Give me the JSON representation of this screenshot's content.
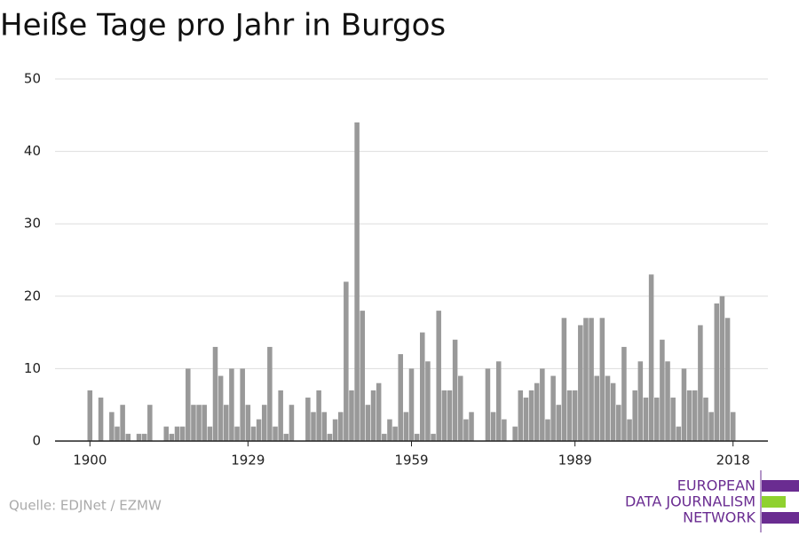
{
  "chart_data": {
    "type": "bar",
    "title": "Heiße Tage pro Jahr in Burgos",
    "x": [
      1900,
      1901,
      1902,
      1903,
      1904,
      1905,
      1906,
      1907,
      1908,
      1909,
      1910,
      1911,
      1912,
      1913,
      1914,
      1915,
      1916,
      1917,
      1918,
      1919,
      1920,
      1921,
      1922,
      1923,
      1924,
      1925,
      1926,
      1927,
      1928,
      1929,
      1930,
      1931,
      1932,
      1933,
      1934,
      1935,
      1936,
      1937,
      1938,
      1939,
      1940,
      1941,
      1942,
      1943,
      1944,
      1945,
      1946,
      1947,
      1948,
      1949,
      1950,
      1951,
      1952,
      1953,
      1954,
      1955,
      1956,
      1957,
      1958,
      1959,
      1960,
      1961,
      1962,
      1963,
      1964,
      1965,
      1966,
      1967,
      1968,
      1969,
      1970,
      1971,
      1972,
      1973,
      1974,
      1975,
      1976,
      1977,
      1978,
      1979,
      1980,
      1981,
      1982,
      1983,
      1984,
      1985,
      1986,
      1987,
      1988,
      1989,
      1990,
      1991,
      1992,
      1993,
      1994,
      1995,
      1996,
      1997,
      1998,
      1999,
      2000,
      2001,
      2002,
      2003,
      2004,
      2005,
      2006,
      2007,
      2008,
      2009,
      2010,
      2011,
      2012,
      2013,
      2014,
      2015,
      2016,
      2017,
      2018
    ],
    "values": [
      7,
      0,
      6,
      0,
      4,
      2,
      5,
      1,
      0,
      1,
      1,
      5,
      0,
      0,
      2,
      1,
      2,
      2,
      10,
      5,
      5,
      5,
      2,
      13,
      9,
      5,
      10,
      2,
      10,
      5,
      2,
      3,
      5,
      13,
      2,
      7,
      1,
      5,
      0,
      0,
      6,
      4,
      7,
      4,
      1,
      3,
      4,
      22,
      7,
      44,
      18,
      5,
      7,
      8,
      1,
      3,
      2,
      12,
      4,
      10,
      1,
      15,
      11,
      1,
      18,
      7,
      7,
      14,
      9,
      3,
      4,
      0,
      0,
      10,
      4,
      11,
      3,
      0,
      2,
      7,
      6,
      7,
      8,
      10,
      3,
      9,
      5,
      17,
      7,
      7,
      16,
      17,
      17,
      9,
      17,
      9,
      8,
      5,
      13,
      3,
      7,
      11,
      6,
      23,
      6,
      14,
      11,
      6,
      2,
      10,
      7,
      7,
      16,
      6,
      4,
      19,
      20,
      17,
      4
    ],
    "color": "#999999",
    "xlim": [
      1893.6,
      2024.4
    ],
    "xticks": [
      1900,
      1929,
      1959,
      1989,
      2018
    ],
    "ylim": [
      0,
      50
    ],
    "yticks": [
      0,
      10,
      20,
      30,
      40,
      50
    ],
    "grid": true,
    "source": "Quelle: EDJNet / EZMW"
  },
  "logo": {
    "lines": [
      "EUROPEAN",
      "DATA JOURNALISM",
      "NETWORK"
    ]
  }
}
